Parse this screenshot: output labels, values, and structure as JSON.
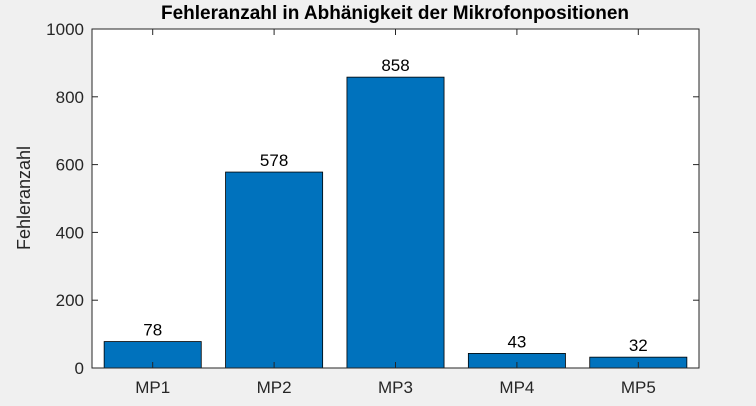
{
  "chart_data": {
    "type": "bar",
    "title": "Fehleranzahl in Abhänigkeit der Mikrofonpositionen",
    "xlabel": "",
    "ylabel": "Fehleranzahl",
    "categories": [
      "MP1",
      "MP2",
      "MP3",
      "MP4",
      "MP5"
    ],
    "values": [
      78,
      578,
      858,
      43,
      32
    ],
    "data_labels": [
      "78",
      "578",
      "858",
      "43",
      "32"
    ],
    "ylim": [
      0,
      1000
    ],
    "yticks": [
      0,
      200,
      400,
      600,
      800,
      1000
    ],
    "ytick_labels": [
      "0",
      "200",
      "400",
      "600",
      "800",
      "1000"
    ],
    "grid": false,
    "colors": {
      "bar": "#0072bd",
      "bar_edge": "#000000",
      "axes_bg": "#ffffff",
      "figure_bg": "#f0f0f0",
      "axis": "#262626"
    }
  }
}
